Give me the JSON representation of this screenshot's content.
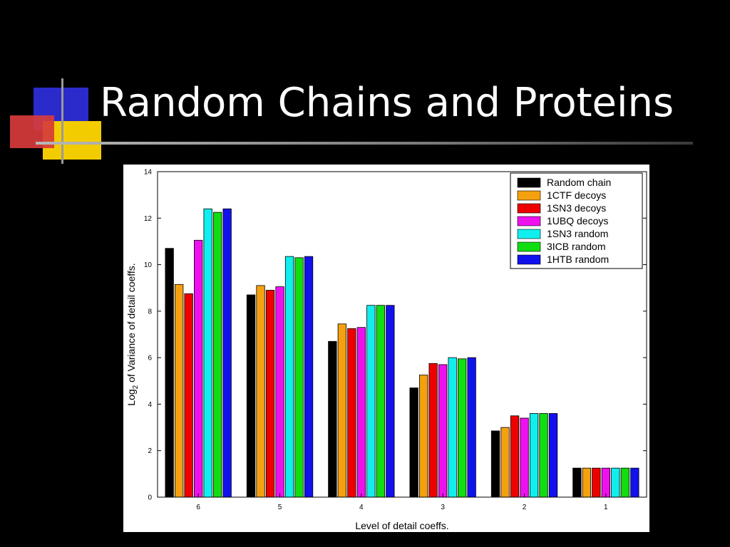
{
  "slide": {
    "title": "Random Chains and Proteins"
  },
  "chart_data": {
    "type": "bar",
    "categories": [
      "6",
      "5",
      "4",
      "3",
      "2",
      "1"
    ],
    "xlabel": "Level of detail coeffs.",
    "ylabel": "Log2 of Variance of detail coeffs.",
    "ylabel_parts": {
      "base": "Log",
      "sub": "2",
      "rest": " of Variance of detail coeffs."
    },
    "ylim": [
      0,
      14
    ],
    "yticks": [
      0,
      2,
      4,
      6,
      8,
      10,
      12,
      14
    ],
    "grid": false,
    "legend_position": "top-right",
    "series": [
      {
        "name": "Random chain",
        "color": "#000000",
        "values": [
          10.7,
          8.7,
          6.7,
          4.7,
          2.85,
          1.25
        ]
      },
      {
        "name": "1CTF decoys",
        "color": "#f5a00f",
        "values": [
          9.15,
          9.1,
          7.45,
          5.25,
          3.0,
          1.25
        ]
      },
      {
        "name": "1SN3 decoys",
        "color": "#ee0000",
        "values": [
          8.75,
          8.9,
          7.25,
          5.75,
          3.5,
          1.25
        ]
      },
      {
        "name": "1UBQ decoys",
        "color": "#ee11ee",
        "values": [
          11.05,
          9.05,
          7.3,
          5.7,
          3.4,
          1.25
        ]
      },
      {
        "name": "1SN3 random",
        "color": "#11eeee",
        "values": [
          12.4,
          10.35,
          8.25,
          6.0,
          3.6,
          1.25
        ]
      },
      {
        "name": "3ICB random",
        "color": "#11dd11",
        "values": [
          12.25,
          10.3,
          8.25,
          5.95,
          3.6,
          1.25
        ]
      },
      {
        "name": "1HTB random",
        "color": "#1111ee",
        "values": [
          12.4,
          10.35,
          8.25,
          6.0,
          3.6,
          1.25
        ]
      }
    ]
  }
}
